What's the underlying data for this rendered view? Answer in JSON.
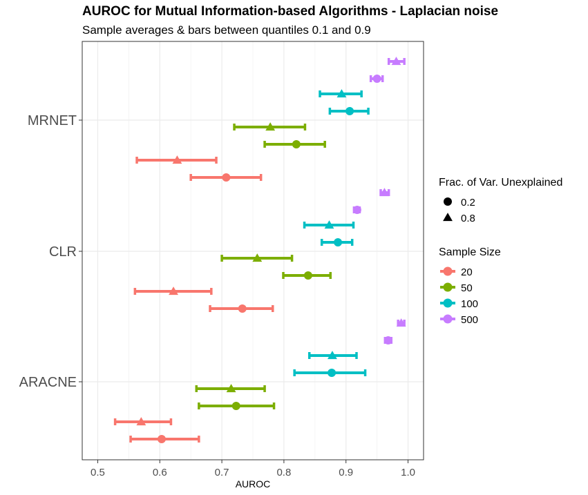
{
  "chart_data": {
    "type": "errorbar-dot",
    "title": "AUROC for Mutual Information-based Algorithms - Laplacian noise",
    "subtitle": "Sample averages & bars between quantiles 0.1 and 0.9",
    "xlabel": "AUROC",
    "ylabel": "",
    "xlim": [
      0.475,
      1.025
    ],
    "xticks": [
      0.5,
      0.6,
      0.7,
      0.8,
      0.9,
      1.0
    ],
    "xtick_labels": [
      "0.5",
      "0.6",
      "0.7",
      "0.8",
      "0.9",
      "1.0"
    ],
    "categories": [
      "MRNET",
      "CLR",
      "ARACNE"
    ],
    "grid": true,
    "legend_position": "right",
    "legends": {
      "shape": {
        "title": "Frac. of Var. Unexplained",
        "items": [
          {
            "label": "0.2",
            "shape": "circle"
          },
          {
            "label": "0.8",
            "shape": "triangle"
          }
        ]
      },
      "color": {
        "title": "Sample Size",
        "items": [
          {
            "label": "20",
            "color": "#F8766D"
          },
          {
            "label": "50",
            "color": "#7CAE00"
          },
          {
            "label": "100",
            "color": "#00BFC4"
          },
          {
            "label": "500",
            "color": "#C77CFF"
          }
        ]
      }
    },
    "points": [
      {
        "algorithm": "MRNET",
        "sample_size": "20",
        "frac": "0.2",
        "mean": 0.707,
        "low": 0.65,
        "high": 0.763
      },
      {
        "algorithm": "MRNET",
        "sample_size": "20",
        "frac": "0.8",
        "mean": 0.628,
        "low": 0.563,
        "high": 0.691
      },
      {
        "algorithm": "MRNET",
        "sample_size": "50",
        "frac": "0.2",
        "mean": 0.82,
        "low": 0.769,
        "high": 0.866
      },
      {
        "algorithm": "MRNET",
        "sample_size": "50",
        "frac": "0.8",
        "mean": 0.778,
        "low": 0.72,
        "high": 0.834
      },
      {
        "algorithm": "MRNET",
        "sample_size": "100",
        "frac": "0.2",
        "mean": 0.906,
        "low": 0.874,
        "high": 0.936
      },
      {
        "algorithm": "MRNET",
        "sample_size": "100",
        "frac": "0.8",
        "mean": 0.893,
        "low": 0.858,
        "high": 0.925
      },
      {
        "algorithm": "MRNET",
        "sample_size": "500",
        "frac": "0.2",
        "mean": 0.95,
        "low": 0.94,
        "high": 0.959
      },
      {
        "algorithm": "MRNET",
        "sample_size": "500",
        "frac": "0.8",
        "mean": 0.981,
        "low": 0.969,
        "high": 0.994
      },
      {
        "algorithm": "CLR",
        "sample_size": "20",
        "frac": "0.2",
        "mean": 0.733,
        "low": 0.681,
        "high": 0.782
      },
      {
        "algorithm": "CLR",
        "sample_size": "20",
        "frac": "0.8",
        "mean": 0.622,
        "low": 0.56,
        "high": 0.683
      },
      {
        "algorithm": "CLR",
        "sample_size": "50",
        "frac": "0.2",
        "mean": 0.839,
        "low": 0.799,
        "high": 0.875
      },
      {
        "algorithm": "CLR",
        "sample_size": "50",
        "frac": "0.8",
        "mean": 0.757,
        "low": 0.7,
        "high": 0.813
      },
      {
        "algorithm": "CLR",
        "sample_size": "100",
        "frac": "0.2",
        "mean": 0.887,
        "low": 0.861,
        "high": 0.91
      },
      {
        "algorithm": "CLR",
        "sample_size": "100",
        "frac": "0.8",
        "mean": 0.873,
        "low": 0.833,
        "high": 0.912
      },
      {
        "algorithm": "CLR",
        "sample_size": "500",
        "frac": "0.2",
        "mean": 0.918,
        "low": 0.913,
        "high": 0.922
      },
      {
        "algorithm": "CLR",
        "sample_size": "500",
        "frac": "0.8",
        "mean": 0.962,
        "low": 0.956,
        "high": 0.969
      },
      {
        "algorithm": "ARACNE",
        "sample_size": "20",
        "frac": "0.2",
        "mean": 0.603,
        "low": 0.553,
        "high": 0.663
      },
      {
        "algorithm": "ARACNE",
        "sample_size": "20",
        "frac": "0.8",
        "mean": 0.57,
        "low": 0.528,
        "high": 0.618
      },
      {
        "algorithm": "ARACNE",
        "sample_size": "50",
        "frac": "0.2",
        "mean": 0.723,
        "low": 0.663,
        "high": 0.784
      },
      {
        "algorithm": "ARACNE",
        "sample_size": "50",
        "frac": "0.8",
        "mean": 0.715,
        "low": 0.659,
        "high": 0.769
      },
      {
        "algorithm": "ARACNE",
        "sample_size": "100",
        "frac": "0.2",
        "mean": 0.877,
        "low": 0.817,
        "high": 0.931
      },
      {
        "algorithm": "ARACNE",
        "sample_size": "100",
        "frac": "0.8",
        "mean": 0.878,
        "low": 0.841,
        "high": 0.917
      },
      {
        "algorithm": "ARACNE",
        "sample_size": "500",
        "frac": "0.2",
        "mean": 0.968,
        "low": 0.963,
        "high": 0.973
      },
      {
        "algorithm": "ARACNE",
        "sample_size": "500",
        "frac": "0.8",
        "mean": 0.989,
        "low": 0.984,
        "high": 0.994
      }
    ]
  }
}
